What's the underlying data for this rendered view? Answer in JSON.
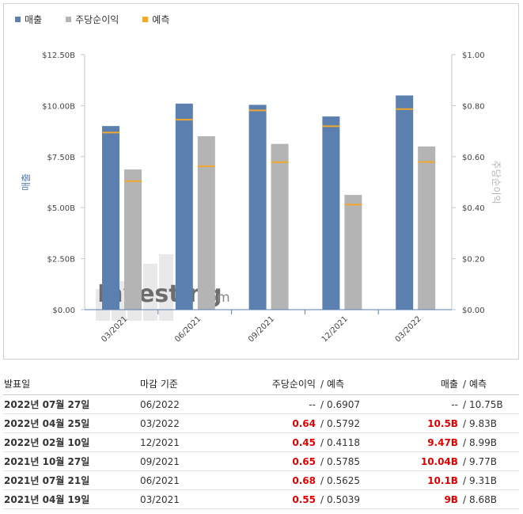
{
  "legend": {
    "revenue": "매출",
    "eps": "주당순이익",
    "forecast": "예측"
  },
  "colors": {
    "revenue": "#5b7fae",
    "eps": "#b4b4b4",
    "forecast": "#f0a830",
    "axis": "#5b7fae"
  },
  "chart_data": {
    "type": "bar",
    "categories": [
      "03/2021",
      "06/2021",
      "09/2021",
      "12/2021",
      "03/2022"
    ],
    "series": [
      {
        "name": "매출",
        "axis": "left",
        "values": [
          9.0,
          10.1,
          10.04,
          9.47,
          10.5
        ],
        "forecast": [
          8.68,
          9.31,
          9.77,
          8.99,
          9.83
        ]
      },
      {
        "name": "주당순이익",
        "axis": "right",
        "values": [
          0.55,
          0.68,
          0.65,
          0.45,
          0.64
        ],
        "forecast": [
          0.5039,
          0.5625,
          0.5785,
          0.4118,
          0.5792
        ]
      }
    ],
    "left_axis": {
      "label": "매출",
      "ticks": [
        "$0.00",
        "$2.50B",
        "$5.00B",
        "$7.50B",
        "$10.00B",
        "$12.50B"
      ],
      "range": [
        0,
        12.5
      ]
    },
    "right_axis": {
      "label": "주당순이익",
      "ticks": [
        "$0.00",
        "$0.20",
        "$0.40",
        "$0.60",
        "$0.80",
        "$1.00"
      ],
      "range": [
        0,
        1.0
      ]
    },
    "watermark": {
      "brand": "Investing",
      "suffix": ".com"
    }
  },
  "table": {
    "headers": {
      "date": "발표일",
      "period": "마감 기준",
      "eps": "주당순이익",
      "eps_forecast": "예측",
      "revenue": "매출",
      "revenue_forecast": "예측",
      "slash": "/"
    },
    "rows": [
      {
        "date": "2022년 07월 27일",
        "period": "06/2022",
        "eps": "--",
        "eps_forecast": "0.6907",
        "revenue": "--",
        "revenue_forecast": "10.75B"
      },
      {
        "date": "2022년 04월 25일",
        "period": "03/2022",
        "eps": "0.64",
        "eps_forecast": "0.5792",
        "revenue": "10.5B",
        "revenue_forecast": "9.83B"
      },
      {
        "date": "2022년 02월 10일",
        "period": "12/2021",
        "eps": "0.45",
        "eps_forecast": "0.4118",
        "revenue": "9.47B",
        "revenue_forecast": "8.99B"
      },
      {
        "date": "2021년 10월 27일",
        "period": "09/2021",
        "eps": "0.65",
        "eps_forecast": "0.5785",
        "revenue": "10.04B",
        "revenue_forecast": "9.77B"
      },
      {
        "date": "2021년 07월 21일",
        "period": "06/2021",
        "eps": "0.68",
        "eps_forecast": "0.5625",
        "revenue": "10.1B",
        "revenue_forecast": "9.31B"
      },
      {
        "date": "2021년 04월 19일",
        "period": "03/2021",
        "eps": "0.55",
        "eps_forecast": "0.5039",
        "revenue": "9B",
        "revenue_forecast": "8.68B"
      }
    ]
  }
}
